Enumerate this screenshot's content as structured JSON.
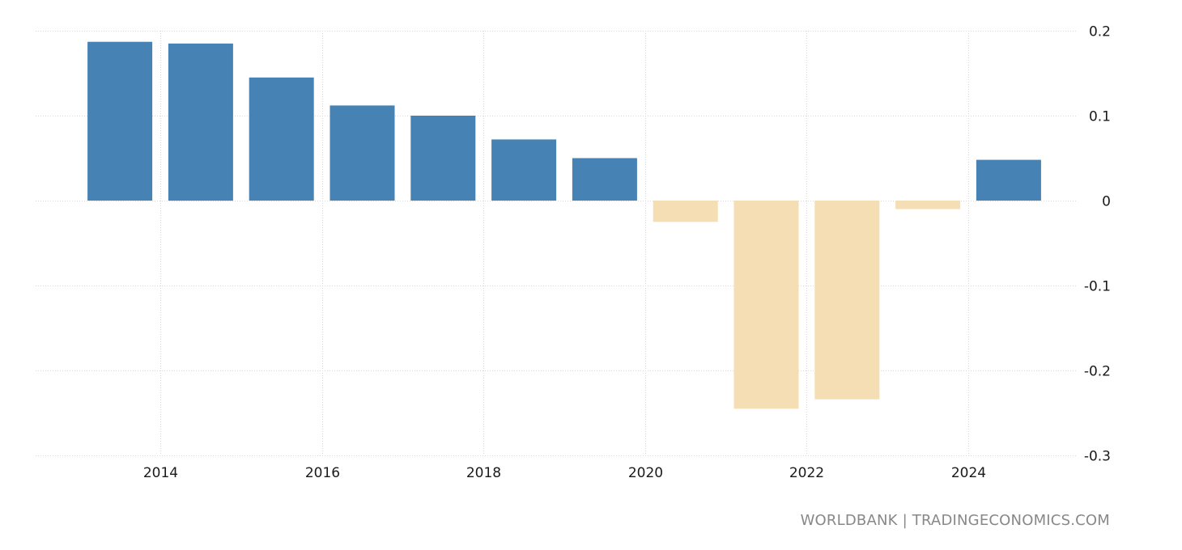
{
  "chart_data": {
    "type": "bar",
    "title": "",
    "xlabel": "",
    "ylabel": "",
    "categories": [
      "2013",
      "2014",
      "2015",
      "2016",
      "2017",
      "2018",
      "2019",
      "2020",
      "2021",
      "2022",
      "2023",
      "2024"
    ],
    "values": [
      0.187,
      0.185,
      0.145,
      0.112,
      0.1,
      0.072,
      0.05,
      -0.025,
      -0.245,
      -0.234,
      -0.01,
      0.048
    ],
    "ylim": [
      -0.3,
      0.2
    ],
    "yticks": [
      "0.2",
      "0.1",
      "0",
      "-0.1",
      "-0.2",
      "-0.3"
    ],
    "ytick_values": [
      0.2,
      0.1,
      0,
      -0.1,
      -0.2,
      -0.3
    ],
    "xticks": [
      "2014",
      "2016",
      "2018",
      "2020",
      "2022",
      "2024"
    ],
    "xtick_values": [
      2014,
      2016,
      2018,
      2020,
      2022,
      2024
    ],
    "grid": true,
    "y_axis_position": "right",
    "colors": {
      "positive": "#4682b4",
      "negative": "#f5deb3"
    }
  },
  "source_text": "WORLDBANK | TRADINGECONOMICS.COM"
}
